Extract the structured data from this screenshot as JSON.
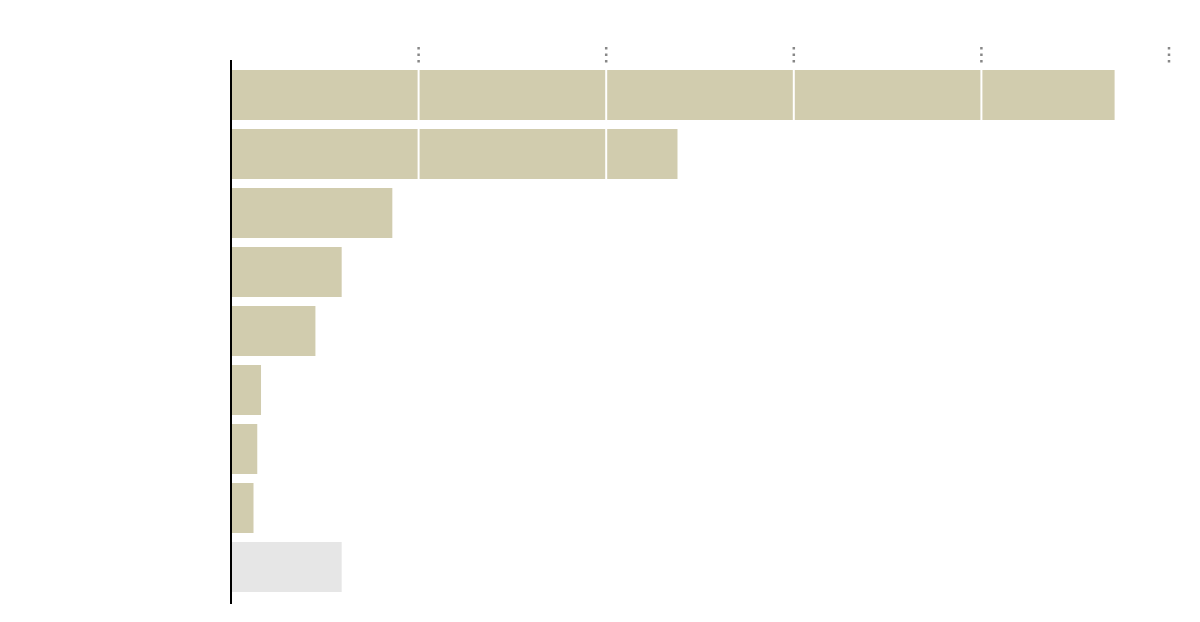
{
  "chart_data": {
    "type": "barh",
    "categories": [
      null,
      null,
      null,
      null,
      null,
      null,
      null,
      null,
      null
    ],
    "values": [
      4.71,
      2.38,
      0.86,
      0.59,
      0.45,
      0.16,
      0.14,
      0.12,
      0.59
    ],
    "colors": [
      "#d1ccae",
      "#d1ccae",
      "#d1ccae",
      "#d1ccae",
      "#d1ccae",
      "#d1ccae",
      "#d1ccae",
      "#d1ccae",
      "#e6e6e6"
    ],
    "xlim": [
      0,
      5
    ],
    "xticks": [
      1,
      2,
      3,
      4,
      5
    ],
    "grid": true
  }
}
